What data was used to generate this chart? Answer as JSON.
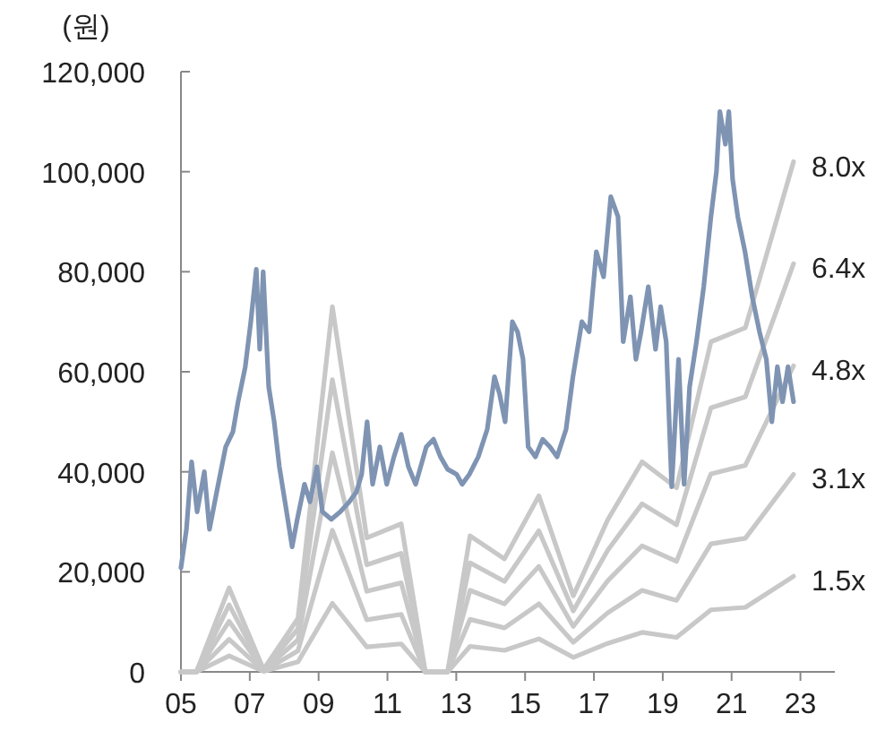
{
  "chart_data": {
    "type": "line",
    "ylabel": "(원)",
    "xlim": [
      2005,
      2024
    ],
    "xticks": [
      {
        "value": 2005,
        "label": "05"
      },
      {
        "value": 2007,
        "label": "07"
      },
      {
        "value": 2009,
        "label": "09"
      },
      {
        "value": 2011,
        "label": "11"
      },
      {
        "value": 2013,
        "label": "13"
      },
      {
        "value": 2015,
        "label": "15"
      },
      {
        "value": 2017,
        "label": "17"
      },
      {
        "value": 2019,
        "label": "19"
      },
      {
        "value": 2021,
        "label": "21"
      },
      {
        "value": 2023,
        "label": "23"
      }
    ],
    "ylim": [
      0,
      120000
    ],
    "yticks": [
      0,
      {
        "value": 20000,
        "label": "20,000"
      },
      {
        "value": 40000,
        "label": "40,000"
      },
      {
        "value": 60000,
        "label": "60,000"
      },
      {
        "value": 80000,
        "label": "80,000"
      },
      {
        "value": 100000,
        "label": "100,000"
      },
      {
        "value": 120000,
        "label": "120,000"
      }
    ],
    "x": [
      2005.0,
      2005.45,
      2006.4,
      2007.4,
      2008.4,
      2009.4,
      2010.4,
      2011.4,
      2012.1,
      2012.75,
      2013.4,
      2014.4,
      2015.4,
      2016.4,
      2017.4,
      2018.4,
      2019.4,
      2020.4,
      2021.4,
      2022.8
    ],
    "series": [
      {
        "name": "8.0x",
        "color": "#c8c8c8",
        "values": [
          0,
          0,
          16800,
          500,
          10700,
          73000,
          26800,
          29600,
          0,
          0,
          27200,
          22600,
          35200,
          15200,
          30400,
          42000,
          36800,
          66000,
          68800,
          102000
        ]
      },
      {
        "name": "6.4x",
        "color": "#c8c8c8",
        "values": [
          0,
          0,
          13400,
          400,
          8600,
          58400,
          21400,
          23700,
          0,
          0,
          21800,
          18100,
          28200,
          12200,
          24300,
          33600,
          29400,
          52800,
          55000,
          81600
        ]
      },
      {
        "name": "4.8x",
        "color": "#c8c8c8",
        "values": [
          0,
          0,
          10100,
          300,
          6400,
          43800,
          16100,
          17800,
          0,
          0,
          16300,
          13600,
          21100,
          9100,
          18200,
          25200,
          22100,
          39600,
          41300,
          61200
        ]
      },
      {
        "name": "3.1x",
        "color": "#c8c8c8",
        "values": [
          0,
          0,
          6500,
          200,
          4200,
          28300,
          10400,
          11500,
          0,
          0,
          10500,
          8800,
          13600,
          5900,
          11800,
          16300,
          14300,
          25600,
          26700,
          39500
        ]
      },
      {
        "name": "1.5x",
        "color": "#c8c8c8",
        "values": [
          0,
          0,
          3200,
          100,
          2000,
          13700,
          5000,
          5600,
          0,
          0,
          5100,
          4300,
          6600,
          2900,
          5700,
          7900,
          6900,
          12400,
          12900,
          19100
        ]
      },
      {
        "color": "#7f94b3",
        "x": [
          2005.0,
          2005.16,
          2005.31,
          2005.47,
          2005.68,
          2005.83,
          2006.04,
          2006.3,
          2006.51,
          2006.66,
          2006.87,
          2007.03,
          2007.19,
          2007.29,
          2007.39,
          2007.55,
          2007.71,
          2007.86,
          2008.07,
          2008.23,
          2008.38,
          2008.59,
          2008.75,
          2008.95,
          2009.11,
          2009.37,
          2009.63,
          2009.89,
          2010.1,
          2010.25,
          2010.41,
          2010.57,
          2010.78,
          2010.98,
          2011.19,
          2011.4,
          2011.61,
          2011.82,
          2012.13,
          2012.34,
          2012.54,
          2012.75,
          2013.01,
          2013.17,
          2013.38,
          2013.64,
          2013.9,
          2014.11,
          2014.26,
          2014.42,
          2014.63,
          2014.78,
          2014.94,
          2015.09,
          2015.3,
          2015.51,
          2015.72,
          2015.93,
          2016.19,
          2016.39,
          2016.65,
          2016.86,
          2017.07,
          2017.28,
          2017.49,
          2017.7,
          2017.85,
          2018.06,
          2018.22,
          2018.37,
          2018.58,
          2018.79,
          2018.94,
          2019.1,
          2019.26,
          2019.46,
          2019.62,
          2019.78,
          2019.98,
          2020.19,
          2020.4,
          2020.56,
          2020.66,
          2020.82,
          2020.92,
          2021.03,
          2021.18,
          2021.39,
          2021.6,
          2021.81,
          2022.01,
          2022.17,
          2022.33,
          2022.48,
          2022.64,
          2022.8
        ],
        "values": [
          20800,
          28500,
          42000,
          32000,
          40000,
          28500,
          36000,
          45000,
          48000,
          54000,
          61000,
          70000,
          80500,
          64500,
          80000,
          57000,
          50000,
          41000,
          32000,
          25000,
          30500,
          37500,
          34000,
          41000,
          32000,
          30500,
          32000,
          34000,
          36000,
          39500,
          50000,
          37500,
          45000,
          37500,
          43000,
          47500,
          41000,
          37500,
          45000,
          46500,
          43000,
          40500,
          39500,
          37500,
          39500,
          43000,
          48500,
          59000,
          55500,
          50000,
          70000,
          68000,
          62500,
          45000,
          43000,
          46500,
          45000,
          43000,
          48500,
          59000,
          70000,
          68000,
          84000,
          79000,
          95000,
          91000,
          66000,
          75000,
          62500,
          68000,
          77000,
          64500,
          73000,
          66000,
          37000,
          62500,
          37500,
          57000,
          66000,
          77000,
          91000,
          100000,
          112000,
          105500,
          112000,
          98500,
          91000,
          84000,
          75000,
          68000,
          62500,
          50000,
          61000,
          54000,
          61000,
          54000
        ]
      }
    ]
  }
}
